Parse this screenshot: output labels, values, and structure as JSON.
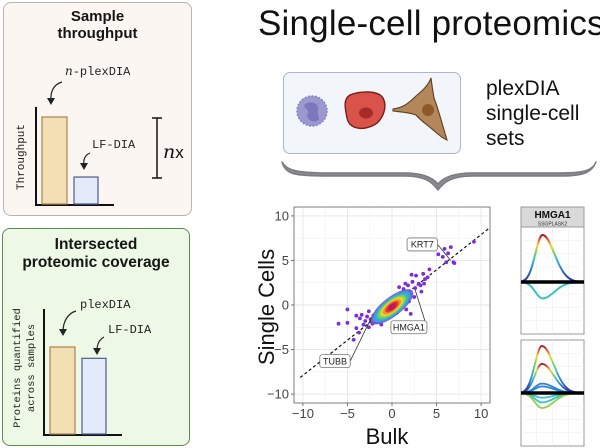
{
  "title": "Single-cell proteomics",
  "cells_caption": [
    "plexDIA",
    "single-cell",
    "sets"
  ],
  "cell_icons": [
    "lymphocyte-cell-icon",
    "red-cell-icon",
    "fibroblast-cell-icon"
  ],
  "panels": {
    "throughput": {
      "title_line1": "Sample",
      "title_line2": "throughput",
      "y_axis_label": "Throughput",
      "bar1_label_italic": "n",
      "bar1_label": "-plexDIA",
      "bar2_label": "LF-DIA",
      "fold_label_italic": "n",
      "fold_label": "x",
      "bar_values": {
        "n-plexDIA": 1.0,
        "LF-DIA": 0.31
      },
      "colors": {
        "bar1": "#f2dfb4",
        "bar1_border": "#a88552",
        "bar2": "#e3ebfa",
        "bar2_border": "#4f5a8a"
      }
    },
    "coverage": {
      "title_line1": "Intersected",
      "title_line2": "proteomic coverage",
      "y_axis_label_line1": "Proteins quantified",
      "y_axis_label_line2": "across samples",
      "bar1_label": "plexDIA",
      "bar2_label": "LF-DIA",
      "bar_values": {
        "plexDIA": 1.0,
        "LF-DIA": 0.87
      },
      "colors": {
        "bar1": "#f2dfb4",
        "bar1_border": "#a88552",
        "bar2": "#e3ebfa",
        "bar2_border": "#4f5a8a"
      }
    }
  },
  "chart_data": [
    {
      "type": "scatter",
      "title": "",
      "xlabel": "Bulk",
      "ylabel": "Single Cells",
      "xlim": [
        -11,
        11
      ],
      "ylim": [
        -11,
        11
      ],
      "xticks": [
        -10,
        -5,
        0,
        5,
        10
      ],
      "yticks": [
        -10,
        -5,
        0,
        5,
        10
      ],
      "xtick_labels": [
        "−10",
        "−5",
        "0",
        "5",
        "10"
      ],
      "ytick_labels": [
        "−10",
        "−5",
        "0",
        "5",
        "10"
      ],
      "grid": true,
      "reference_line": {
        "slope": 0.79,
        "intercept": 0.0,
        "style": "dashed"
      },
      "annotations": [
        {
          "label": "KRT7",
          "point": [
            6.6,
            5.0
          ],
          "label_at": [
            3.4,
            6.8
          ]
        },
        {
          "label": "HMGA1",
          "point": [
            2.6,
            1.7
          ],
          "label_at": [
            1.9,
            -2.5
          ]
        },
        {
          "label": "TUBB",
          "point": [
            -2.3,
            -1.4
          ],
          "label_at": [
            -6.4,
            -6.3
          ]
        }
      ],
      "points": [
        [
          -6,
          -2.1
        ],
        [
          -5,
          -0.5
        ],
        [
          -5,
          -2
        ],
        [
          -4.3,
          -3.9
        ],
        [
          -4,
          -2.6
        ],
        [
          -4,
          -1.2
        ],
        [
          -3.7,
          -3.1
        ],
        [
          -3.6,
          -1.5
        ],
        [
          -3.4,
          -1.1
        ],
        [
          -3.2,
          -2.2
        ],
        [
          -3,
          -1.8
        ],
        [
          -2.8,
          -1.3
        ],
        [
          -2.6,
          -2.5
        ],
        [
          -2.4,
          -1.6
        ],
        [
          -2.2,
          -2.1
        ],
        [
          -2.1,
          -1.2
        ],
        [
          -1.9,
          -1.9
        ],
        [
          -1.8,
          -1.4
        ],
        [
          -1.6,
          -0.8
        ],
        [
          -1.5,
          -1.9
        ],
        [
          -1.3,
          -1.1
        ],
        [
          -1.1,
          -0.6
        ],
        [
          -1,
          -1.5
        ],
        [
          -0.8,
          -0.3
        ],
        [
          -0.6,
          -0.9
        ],
        [
          -0.5,
          0.2
        ],
        [
          -0.3,
          -0.5
        ],
        [
          -0.2,
          0.3
        ],
        [
          0,
          -0.2
        ],
        [
          0.2,
          0.5
        ],
        [
          0.4,
          0.1
        ],
        [
          0.6,
          0.8
        ],
        [
          0.8,
          -0.4
        ],
        [
          1,
          1.3
        ],
        [
          1.1,
          0.2
        ],
        [
          1.3,
          1.8
        ],
        [
          1.5,
          1
        ],
        [
          1.6,
          -0.5
        ],
        [
          1.8,
          2.2
        ],
        [
          2,
          1.2
        ],
        [
          2.1,
          -1
        ],
        [
          2.3,
          2.6
        ],
        [
          2.5,
          0.9
        ],
        [
          2.6,
          1.9
        ],
        [
          2.7,
          3.3
        ],
        [
          3,
          2.4
        ],
        [
          3.2,
          2.2
        ],
        [
          3.3,
          1.5
        ],
        [
          3.5,
          3.5
        ],
        [
          3.7,
          2.9
        ],
        [
          4,
          3.1
        ],
        [
          4.2,
          4
        ],
        [
          1.5,
          2.4
        ],
        [
          2.2,
          3.4
        ],
        [
          0.8,
          2
        ],
        [
          5.2,
          5.7
        ],
        [
          5.7,
          5.4
        ],
        [
          5.9,
          6.3
        ],
        [
          6.1,
          4.8
        ],
        [
          6.3,
          5.8
        ],
        [
          6.6,
          6.5
        ],
        [
          6.9,
          4.8
        ],
        [
          7,
          4.7
        ],
        [
          9.2,
          7.1
        ],
        [
          -1.2,
          -2.2
        ],
        [
          -0.7,
          -1.3
        ],
        [
          0.5,
          -0.9
        ],
        [
          -2.6,
          -0.7
        ],
        [
          3.6,
          2.4
        ],
        [
          1.9,
          0.4
        ]
      ],
      "density_core": {
        "center": [
          0,
          -0.2
        ],
        "colors": [
          "#6a5ad8",
          "#3aa0e0",
          "#35c0b0",
          "#8fd24a",
          "#f2d42a",
          "#f28a2a",
          "#e5302a",
          "#b5176a"
        ]
      },
      "point_color": "#7b2cdb"
    },
    {
      "type": "line",
      "title": "HMGA1",
      "subtitle": "SSGPLASK2",
      "description": "Mirrored elution profiles colored by intensity (blue low to red high)",
      "series": [
        {
          "name": "profile-up",
          "peak": 1.0
        },
        {
          "name": "profile-down",
          "peak": -0.35
        }
      ]
    },
    {
      "type": "line",
      "title": "",
      "description": "Multiple mirrored elution profiles colored by intensity",
      "series": [
        {
          "name": "profile-1",
          "peak": 1.0
        },
        {
          "name": "profile-2",
          "peak": 0.62
        },
        {
          "name": "profile-3",
          "peak": 0.2
        },
        {
          "name": "profile-4",
          "peak": 0.14
        },
        {
          "name": "profile-5",
          "peak": -0.1
        },
        {
          "name": "profile-6",
          "peak": -0.2
        },
        {
          "name": "profile-7",
          "peak": -0.32
        }
      ]
    }
  ]
}
